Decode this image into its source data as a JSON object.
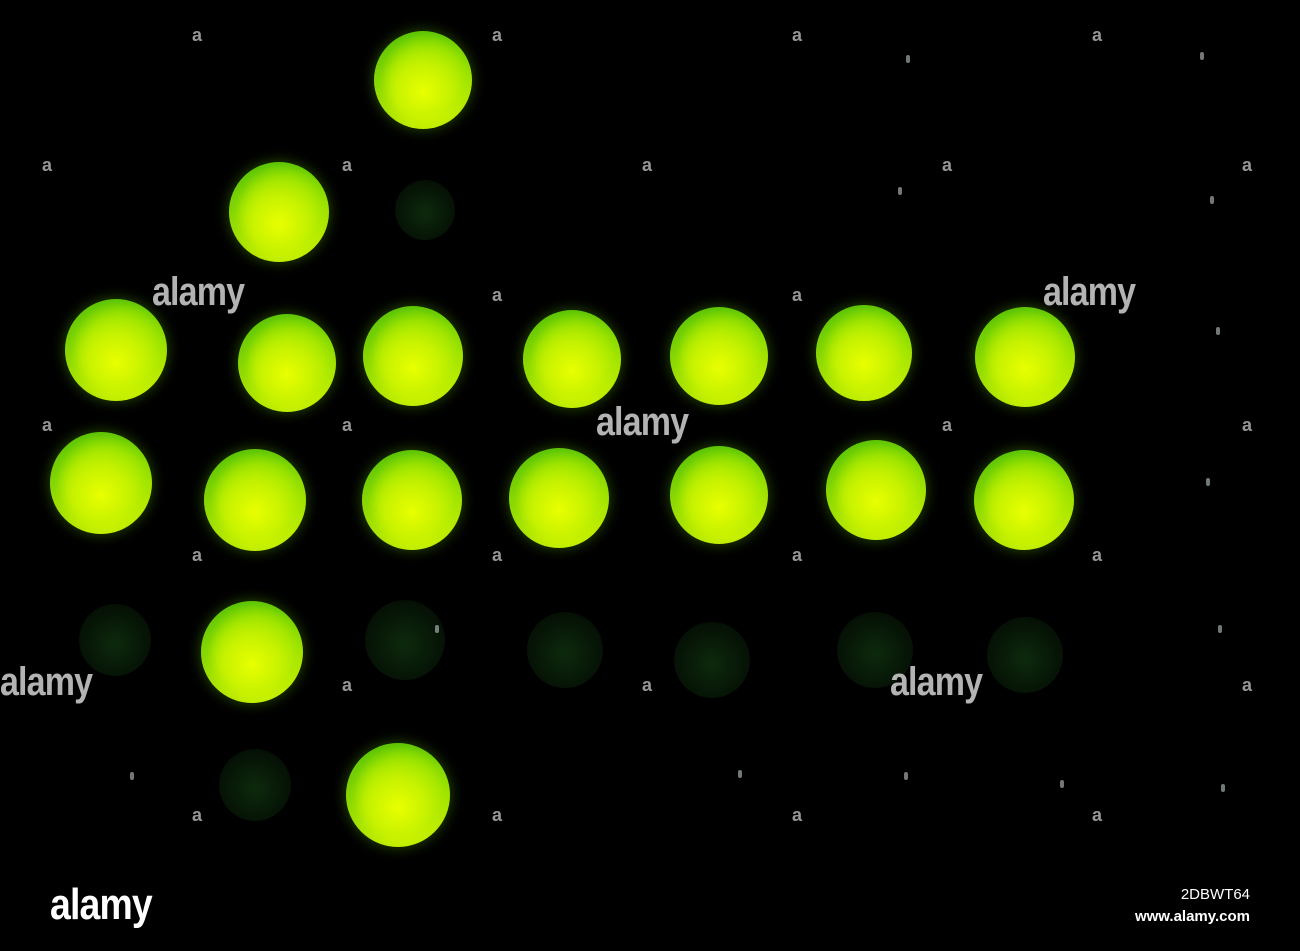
{
  "image": {
    "subject": "green LEDs arranged in an arrow pattern on black background",
    "led_color": "#c6f200",
    "background_color": "#000000"
  },
  "watermark": {
    "word": "alamy",
    "mark": "a",
    "logo": "alamy",
    "image_id": "2DBWT64",
    "site": "www.alamy.com"
  }
}
